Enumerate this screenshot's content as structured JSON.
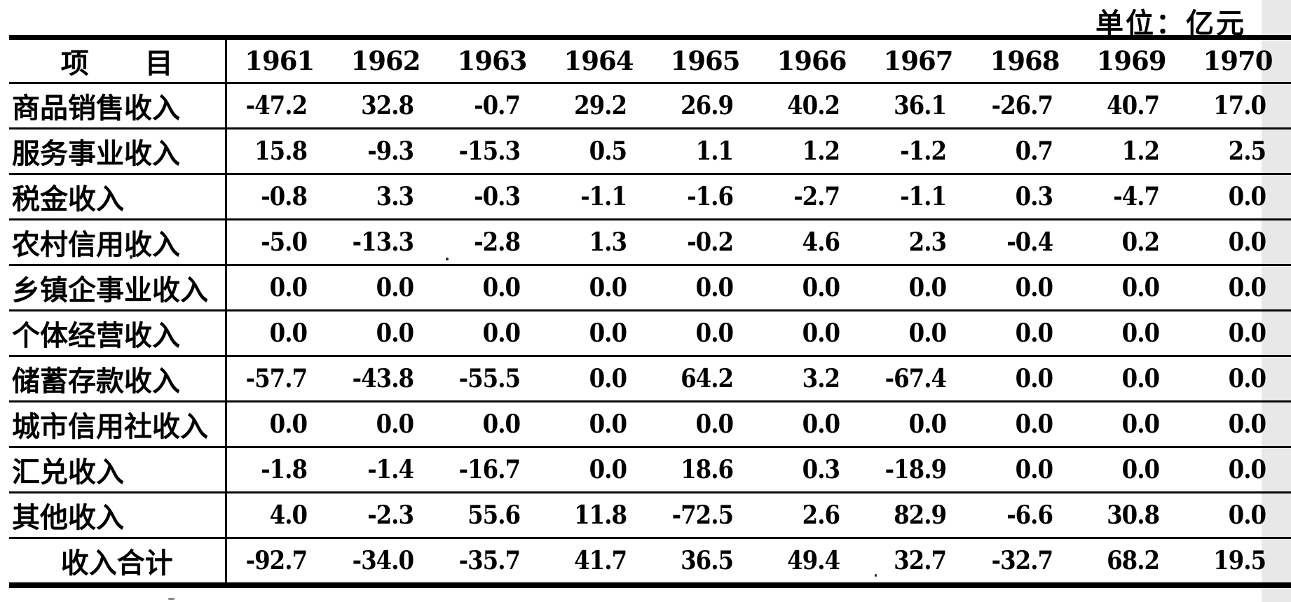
{
  "unit_note": "单位：亿元",
  "table": {
    "item_header": "项　　目",
    "years": [
      "1961",
      "1962",
      "1963",
      "1964",
      "1965",
      "1966",
      "1967",
      "1968",
      "1969",
      "1970"
    ],
    "rows": [
      {
        "label": "商品销售收入",
        "values": [
          "-47.2",
          "32.8",
          "-0.7",
          "29.2",
          "26.9",
          "40.2",
          "36.1",
          "-26.7",
          "40.7",
          "17.0"
        ]
      },
      {
        "label": "服务事业收入",
        "values": [
          "15.8",
          "-9.3",
          "-15.3",
          "0.5",
          "1.1",
          "1.2",
          "-1.2",
          "0.7",
          "1.2",
          "2.5"
        ]
      },
      {
        "label": "税金收入",
        "values": [
          "-0.8",
          "3.3",
          "-0.3",
          "-1.1",
          "-1.6",
          "-2.7",
          "-1.1",
          "0.3",
          "-4.7",
          "0.0"
        ]
      },
      {
        "label": "农村信用收入",
        "values": [
          "-5.0",
          "-13.3",
          "-2.8",
          "1.3",
          "-0.2",
          "4.6",
          "2.3",
          "-0.4",
          "0.2",
          "0.0"
        ]
      },
      {
        "label": "乡镇企事业收入",
        "values": [
          "0.0",
          "0.0",
          "0.0",
          "0.0",
          "0.0",
          "0.0",
          "0.0",
          "0.0",
          "0.0",
          "0.0"
        ]
      },
      {
        "label": "个体经营收入",
        "values": [
          "0.0",
          "0.0",
          "0.0",
          "0.0",
          "0.0",
          "0.0",
          "0.0",
          "0.0",
          "0.0",
          "0.0"
        ]
      },
      {
        "label": "储蓄存款收入",
        "values": [
          "-57.7",
          "-43.8",
          "-55.5",
          "0.0",
          "64.2",
          "3.2",
          "-67.4",
          "0.0",
          "0.0",
          "0.0"
        ]
      },
      {
        "label": "城市信用社收入",
        "values": [
          "0.0",
          "0.0",
          "0.0",
          "0.0",
          "0.0",
          "0.0",
          "0.0",
          "0.0",
          "0.0",
          "0.0"
        ]
      },
      {
        "label": "汇兑收入",
        "values": [
          "-1.8",
          "-1.4",
          "-16.7",
          "0.0",
          "18.6",
          "0.3",
          "-18.9",
          "0.0",
          "0.0",
          "0.0"
        ]
      },
      {
        "label": "其他收入",
        "values": [
          "4.0",
          "-2.3",
          "55.6",
          "11.8",
          "-72.5",
          "2.6",
          "82.9",
          "-6.6",
          "30.8",
          "0.0"
        ]
      }
    ],
    "total_row": {
      "label": "收入合计",
      "values": [
        "-92.7",
        "-34.0",
        "-35.7",
        "41.7",
        "36.5",
        "49.4",
        "32.7",
        "-32.7",
        "68.2",
        "19.5"
      ]
    }
  },
  "colors": {
    "ink": "#000000",
    "paper": "#ffffff"
  }
}
